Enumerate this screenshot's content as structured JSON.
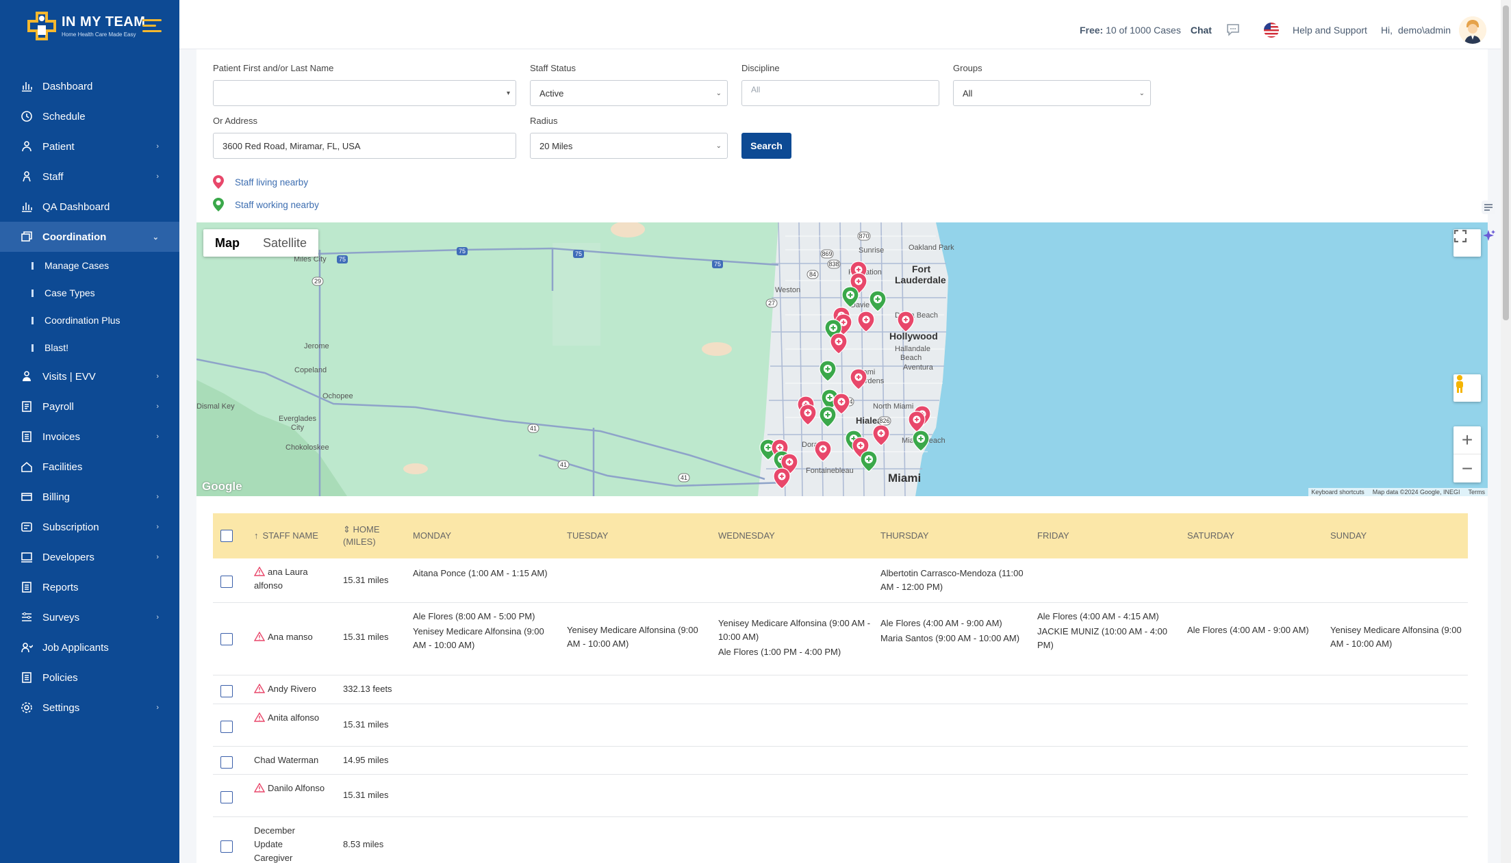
{
  "brand": {
    "title": "IN MY TEAM",
    "tagline": "Home Health Care Made Easy"
  },
  "sidebar": {
    "items": [
      {
        "label": "Dashboard",
        "icon": "bar-chart-icon"
      },
      {
        "label": "Schedule",
        "icon": "schedule-icon"
      },
      {
        "label": "Patient",
        "icon": "patient-icon",
        "has_children": true
      },
      {
        "label": "Staff",
        "icon": "staff-icon",
        "has_children": true
      },
      {
        "label": "QA Dashboard",
        "icon": "bar-chart-icon"
      },
      {
        "label": "Coordination",
        "icon": "coordination-icon",
        "has_children": true,
        "active": true
      },
      {
        "label": "Visits | EVV",
        "icon": "visits-icon",
        "has_children": true
      },
      {
        "label": "Payroll",
        "icon": "payroll-icon",
        "has_children": true
      },
      {
        "label": "Invoices",
        "icon": "invoice-icon",
        "has_children": true
      },
      {
        "label": "Facilities",
        "icon": "home-icon"
      },
      {
        "label": "Billing",
        "icon": "billing-icon",
        "has_children": true
      },
      {
        "label": "Subscription",
        "icon": "subscription-icon",
        "has_children": true
      },
      {
        "label": "Developers",
        "icon": "developers-icon",
        "has_children": true
      },
      {
        "label": "Reports",
        "icon": "reports-icon"
      },
      {
        "label": "Surveys",
        "icon": "surveys-icon",
        "has_children": true
      },
      {
        "label": "Job Applicants",
        "icon": "applicants-icon"
      },
      {
        "label": "Policies",
        "icon": "policies-icon"
      },
      {
        "label": "Settings",
        "icon": "settings-icon",
        "has_children": true
      }
    ],
    "coordination_sub": [
      "Manage Cases",
      "Case Types",
      "Coordination Plus",
      "Blast!"
    ]
  },
  "topbar": {
    "free_label": "Free:",
    "free_value": "10 of 1000 Cases",
    "chat": "Chat",
    "help": "Help and Support",
    "greeting": "Hi,",
    "user": "demo\\admin"
  },
  "form": {
    "patient_label": "Patient First and/or Last Name",
    "patient_value": "",
    "staff_status_label": "Staff Status",
    "staff_status_value": "Active",
    "discipline_label": "Discipline",
    "discipline_placeholder": "All",
    "groups_label": "Groups",
    "groups_value": "All",
    "address_label": "Or Address",
    "address_value": "3600 Red Road, Miramar, FL, USA",
    "radius_label": "Radius",
    "radius_value": "20 Miles",
    "search_label": "Search"
  },
  "legend": {
    "living": "Staff living nearby",
    "working": "Staff working nearby",
    "living_color": "#e8476a",
    "working_color": "#3aa84a"
  },
  "map": {
    "tab_map": "Map",
    "tab_satellite": "Satellite",
    "google": "Google",
    "attrib_shortcuts": "Keyboard shortcuts",
    "attrib_data": "Map data ©2024 Google, INEGI",
    "attrib_terms": "Terms",
    "place_labels": [
      "Sunrise",
      "Oakland Park",
      "Fort",
      "Lauderdale",
      "Plantation",
      "Weston",
      "Davie",
      "Dania Beach",
      "Hollywood",
      "Hallandale",
      "Beach",
      "Aventura",
      "Miami",
      "Gardens",
      "North Miami",
      "Doral",
      "Hialeah",
      "Miami Beach",
      "Miami",
      "Fontainebleau",
      "Miles City",
      "Jerome",
      "Copeland",
      "Ochopee",
      "Everglades",
      "City",
      "Chokoloskee",
      "Dismal Key"
    ],
    "highway_labels": [
      "75",
      "75",
      "75",
      "75",
      "29",
      "41",
      "41",
      "41",
      "27",
      "84",
      "869",
      "838",
      "870",
      "924",
      "826"
    ]
  },
  "table": {
    "headers": {
      "staff_name": "STAFF NAME",
      "home": "HOME",
      "home_unit": "(MILES)",
      "monday": "MONDAY",
      "tuesday": "TUESDAY",
      "wednesday": "WEDNESDAY",
      "thursday": "THURSDAY",
      "friday": "FRIDAY",
      "saturday": "SATURDAY",
      "sunday": "SUNDAY"
    },
    "rows": [
      {
        "name": "ana Laura alfonso",
        "warn": true,
        "home": "15.31 miles",
        "monday": "Aitana Ponce (1:00 AM - 1:15 AM)",
        "thursday": "Albertotin Carrasco-Mendoza (11:00 AM - 12:00 PM)"
      },
      {
        "name": "Ana manso",
        "warn": true,
        "home": "15.31 miles",
        "monday": "Ale Flores (8:00 AM - 5:00 PM)",
        "monday2": "Yenisey Medicare Alfonsina (9:00 AM - 10:00 AM)",
        "tuesday": "Yenisey Medicare Alfonsina (9:00 AM - 10:00 AM)",
        "wednesday": "Yenisey Medicare Alfonsina (9:00 AM - 10:00 AM)",
        "wednesday2": "Ale Flores (1:00 PM - 4:00 PM)",
        "thursday": "Ale Flores (4:00 AM - 9:00 AM)",
        "thursday2": "Maria Santos (9:00 AM - 10:00 AM)",
        "friday": "Ale Flores (4:00 AM - 4:15 AM)",
        "friday2": "JACKIE MUNIZ (10:00 AM - 4:00 PM)",
        "saturday": "Ale Flores (4:00 AM - 9:00 AM)",
        "sunday": "Yenisey Medicare Alfonsina (9:00 AM - 10:00 AM)"
      },
      {
        "name": "Andy Rivero",
        "warn": true,
        "home": "332.13 feets"
      },
      {
        "name": "Anita alfonso",
        "warn": true,
        "home": "15.31 miles"
      },
      {
        "name": "Chad Waterman",
        "warn": false,
        "home": "14.95 miles"
      },
      {
        "name": "Danilo Alfonso",
        "warn": true,
        "home": "15.31 miles"
      },
      {
        "name": "December Update Caregiver",
        "warn": false,
        "home": "8.53 miles"
      }
    ]
  }
}
